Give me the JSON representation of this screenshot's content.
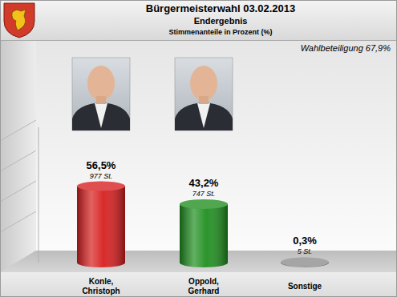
{
  "chart_data": {
    "type": "bar",
    "title": "Bürgermeisterwahl 03.02.2013",
    "subtitle": "Endergebnis",
    "annotations": [
      "Stimmenanteile in Prozent (%)",
      "Wahlbeteiligung 67,9%"
    ],
    "categories": [
      "Konle, Christoph",
      "Oppold, Gerhard",
      "Sonstige"
    ],
    "values": [
      56.5,
      43.2,
      0.3
    ],
    "value_labels": [
      "56,5%",
      "43,2%",
      "0,3%"
    ],
    "vote_labels": [
      "977 St.",
      "747 St.",
      "5 St."
    ],
    "colors": [
      "#d81e1e",
      "#1f8f1f",
      "#8c8c8c"
    ],
    "ylim": [
      0,
      100
    ],
    "data_labels": true,
    "tick_labels": false,
    "grid": false
  }
}
